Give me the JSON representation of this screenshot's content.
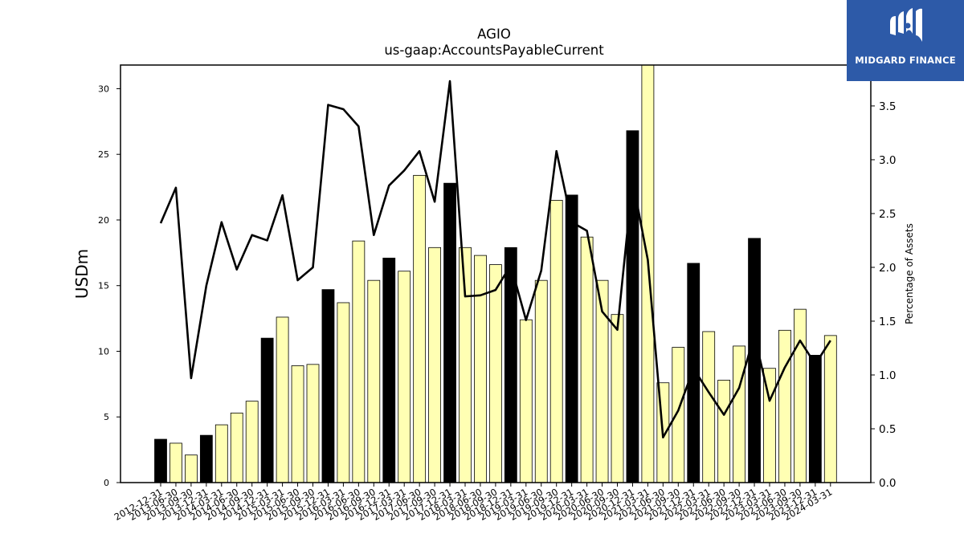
{
  "brand": {
    "name": "MIDGARD FINANCE",
    "color": "#2d5aa8"
  },
  "colors": {
    "highlight_bar": "#000000",
    "regular_bar": "#ffffb3",
    "line": "#000000"
  },
  "chart_data": {
    "type": "bar",
    "title": "AGIO",
    "subtitle": "us-gaap:AccountsPayableCurrent",
    "ylabel": "USDm",
    "y2label": "Percentage of Assets",
    "ylim": [
      0,
      31.8
    ],
    "y2lim": [
      0,
      3.88
    ],
    "yticks": [
      0,
      5,
      10,
      15,
      20,
      25,
      30
    ],
    "y2ticks": [
      "0.0",
      "0.5",
      "1.0",
      "1.5",
      "2.0",
      "2.5",
      "3.0",
      "3.5"
    ],
    "categories": [
      "2012-12-31",
      "2013-06-30",
      "2013-09-30",
      "2013-12-31",
      "2014-03-31",
      "2014-06-30",
      "2014-09-30",
      "2014-12-31",
      "2015-03-31",
      "2015-06-30",
      "2015-09-30",
      "2015-12-31",
      "2016-03-31",
      "2016-06-30",
      "2016-09-30",
      "2016-12-31",
      "2017-03-31",
      "2017-06-30",
      "2017-09-30",
      "2017-12-31",
      "2018-03-31",
      "2018-06-30",
      "2018-09-30",
      "2018-12-31",
      "2019-03-31",
      "2019-06-30",
      "2019-09-30",
      "2019-12-31",
      "2020-03-31",
      "2020-06-30",
      "2020-09-30",
      "2020-12-31",
      "2021-03-31",
      "2021-06-30",
      "2021-09-30",
      "2021-12-31",
      "2022-03-31",
      "2022-06-30",
      "2022-09-30",
      "2022-12-31",
      "2023-03-31",
      "2023-06-30",
      "2023-09-30",
      "2023-12-31",
      "2024-03-31"
    ],
    "series": [
      {
        "type": "bar",
        "values": [
          3.3,
          3.0,
          2.1,
          3.6,
          4.4,
          5.3,
          6.2,
          11.0,
          12.6,
          8.9,
          9.0,
          14.7,
          13.7,
          18.4,
          15.4,
          17.1,
          16.1,
          23.4,
          17.9,
          22.8,
          17.9,
          17.3,
          16.6,
          17.9,
          12.4,
          15.4,
          21.5,
          21.9,
          18.7,
          15.4,
          12.8,
          26.8,
          33.0,
          7.6,
          10.3,
          16.7,
          11.5,
          7.8,
          10.4,
          18.6,
          8.7,
          11.6,
          13.2,
          9.7,
          11.2
        ]
      },
      {
        "type": "line",
        "axis": "right",
        "values": [
          2.41,
          2.74,
          0.97,
          1.83,
          2.42,
          1.98,
          2.3,
          2.25,
          2.67,
          1.88,
          2.0,
          3.51,
          3.47,
          3.31,
          2.3,
          2.76,
          2.9,
          3.08,
          2.61,
          3.73,
          1.73,
          1.74,
          1.79,
          2.02,
          1.51,
          1.97,
          3.08,
          2.42,
          2.34,
          1.59,
          1.42,
          2.81,
          2.07,
          0.42,
          0.67,
          1.06,
          0.84,
          0.63,
          0.88,
          1.37,
          0.76,
          1.07,
          1.32,
          1.1,
          1.32
        ]
      }
    ],
    "highlight_indices": [
      0,
      3,
      7,
      11,
      15,
      19,
      23,
      27,
      31,
      35,
      39,
      43
    ],
    "grid": false
  }
}
